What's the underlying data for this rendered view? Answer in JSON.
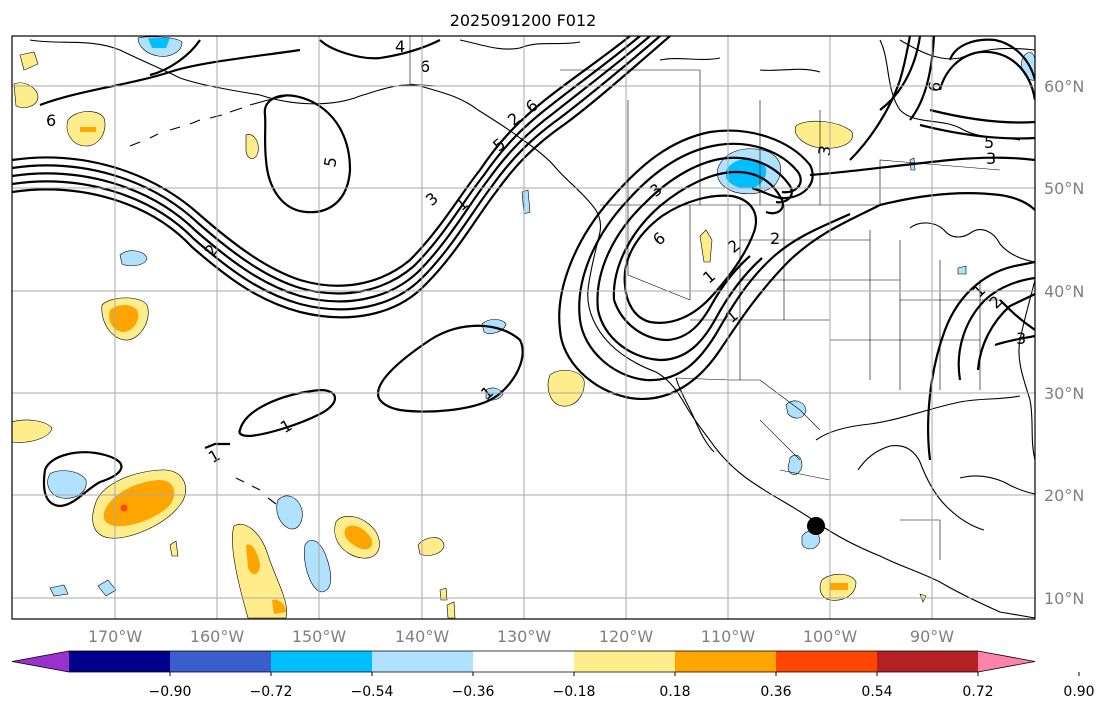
{
  "title": "2025091200 F012",
  "map": {
    "lon_labels": [
      "170°W",
      "160°W",
      "150°W",
      "140°W",
      "130°W",
      "120°W",
      "110°W",
      "100°W",
      "90°W"
    ],
    "lat_labels": [
      "60°N",
      "50°N",
      "40°N",
      "30°N",
      "20°N",
      "10°N"
    ],
    "contour_labels": [
      "4",
      "6",
      "6",
      "6",
      "5",
      "5",
      "3",
      "2",
      "1",
      "2",
      "1",
      "1",
      "1",
      "3",
      "6",
      "2",
      "1",
      "1",
      "5",
      "2",
      "3",
      "3",
      "1",
      "2",
      "6",
      "3"
    ]
  },
  "colorbar": {
    "tick_labels": [
      "−0.90",
      "−0.72",
      "−0.54",
      "−0.36",
      "−0.18",
      "0.18",
      "0.36",
      "0.54",
      "0.72",
      "0.90"
    ],
    "colors": [
      "#9932cc",
      "#00008b",
      "#3a5fcd",
      "#00bfff",
      "#b0e2ff",
      "#ffffff",
      "#ffec8b",
      "#ffa500",
      "#ff4500",
      "#b22222",
      "#ff82ab"
    ]
  }
}
